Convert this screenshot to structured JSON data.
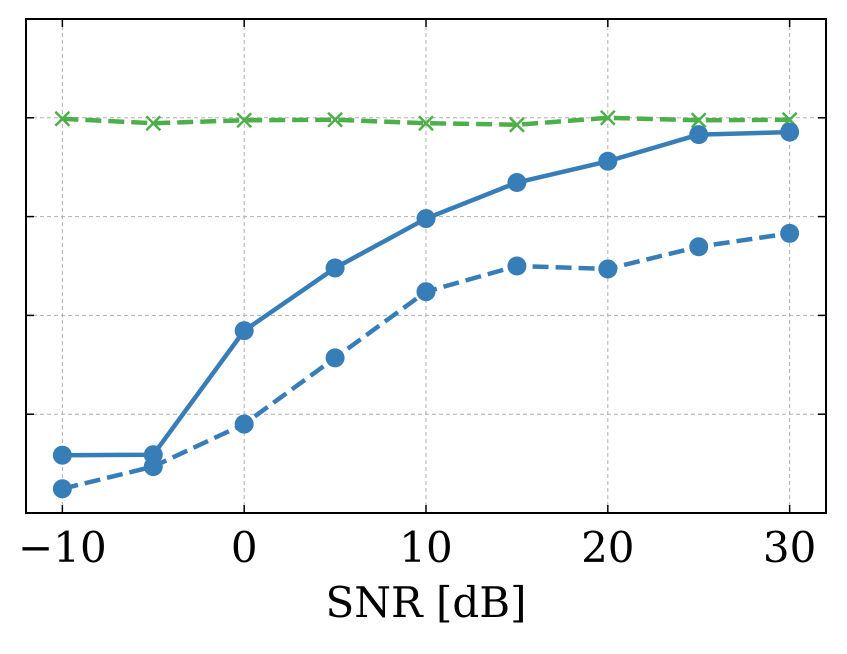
{
  "chart_data": {
    "type": "line",
    "title": "",
    "xlabel": "SNR [dB]",
    "ylabel": "",
    "x": [
      -10,
      -5,
      0,
      5,
      10,
      15,
      20,
      25,
      30
    ],
    "xticks": [
      -10,
      0,
      10,
      20,
      30
    ],
    "xtick_labels": [
      "−10",
      "0",
      "10",
      "20",
      "30"
    ],
    "xlim": [
      -12,
      32
    ],
    "ylim": [
      0,
      1
    ],
    "yticks": [
      0.2,
      0.4,
      0.6,
      0.8
    ],
    "ytick_labels_shown": false,
    "grid": true,
    "legend": "none",
    "series": [
      {
        "values": [
          0.798,
          0.789,
          0.795,
          0.796,
          0.789,
          0.786,
          0.8,
          0.795,
          0.796
        ],
        "color": "#4daf4a",
        "line_style": "dashed",
        "marker": "x"
      },
      {
        "values": [
          0.117,
          0.118,
          0.369,
          0.496,
          0.596,
          0.669,
          0.712,
          0.766,
          0.771
        ],
        "color": "#377eb8",
        "line_style": "solid",
        "marker": "circle"
      },
      {
        "values": [
          0.049,
          0.094,
          0.18,
          0.314,
          0.448,
          0.5,
          0.494,
          0.539,
          0.566
        ],
        "color": "#377eb8",
        "line_style": "dashed",
        "marker": "circle"
      }
    ]
  }
}
